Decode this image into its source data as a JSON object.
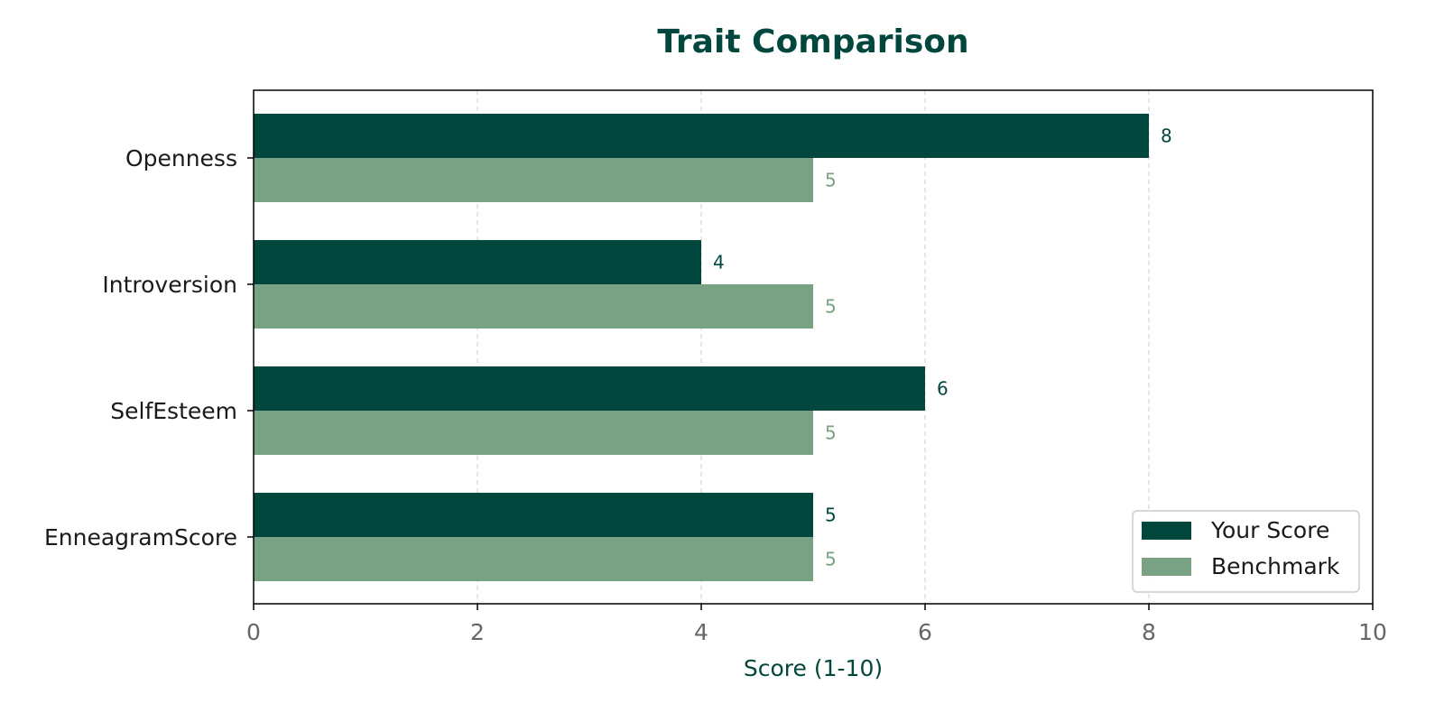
{
  "chart_data": {
    "type": "bar",
    "orientation": "horizontal",
    "title": "Trait Comparison",
    "xlabel": "Score (1-10)",
    "ylabel": "",
    "categories": [
      "Openness",
      "Introversion",
      "SelfEsteem",
      "EnneagramScore"
    ],
    "series": [
      {
        "name": "Your Score",
        "values": [
          8,
          4,
          6,
          5
        ],
        "color": "#02473e"
      },
      {
        "name": "Benchmark",
        "values": [
          5,
          5,
          5,
          5
        ],
        "color": "#78a283"
      }
    ],
    "xlim": [
      0,
      10
    ],
    "xticks": [
      0,
      2,
      4,
      6,
      8,
      10
    ],
    "grid": "x-dashed",
    "legend_position": "bottom-right",
    "accent_color": "#02473e"
  }
}
